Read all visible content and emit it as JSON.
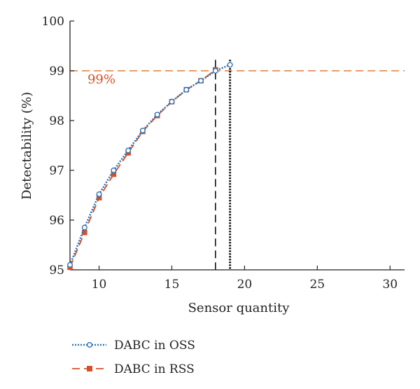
{
  "chart_data": {
    "type": "line",
    "xlabel": "Sensor quantity",
    "ylabel": "Detectability (%)",
    "xlim": [
      8,
      31
    ],
    "ylim": [
      95,
      100
    ],
    "xticks": [
      10,
      15,
      20,
      25,
      30
    ],
    "yticks": [
      95,
      96,
      97,
      98,
      99,
      100
    ],
    "grid": false,
    "legend_position": "below",
    "series": [
      {
        "name": "DABC in OSS",
        "color": "#2e75b6",
        "marker": "circle",
        "line_style": "dotted",
        "x": [
          8,
          9,
          10,
          11,
          12,
          13,
          14,
          15,
          16,
          17,
          18,
          19
        ],
        "y": [
          95.1,
          95.85,
          96.52,
          97.0,
          97.4,
          97.8,
          98.12,
          98.38,
          98.62,
          98.8,
          99.0,
          99.12
        ]
      },
      {
        "name": "DABC in RSS",
        "color": "#d4502a",
        "marker": "square",
        "line_style": "dashed",
        "x": [
          8,
          9,
          10,
          11,
          12,
          13,
          14,
          15,
          16,
          17,
          18
        ],
        "y": [
          95.05,
          95.75,
          96.45,
          96.92,
          97.35,
          97.78,
          98.1,
          98.38,
          98.62,
          98.8,
          99.02
        ]
      }
    ],
    "reference_lines": [
      {
        "orientation": "horizontal",
        "value": 99,
        "color": "#e07b39",
        "style": "dashed"
      },
      {
        "orientation": "vertical",
        "value": 18,
        "color": "#000000",
        "style": "dashed"
      },
      {
        "orientation": "vertical",
        "value": 19,
        "color": "#000000",
        "style": "dotted"
      }
    ],
    "annotations": [
      {
        "text": "99%",
        "x": 9.2,
        "y": 98.75,
        "color": "#d4502a"
      }
    ]
  }
}
